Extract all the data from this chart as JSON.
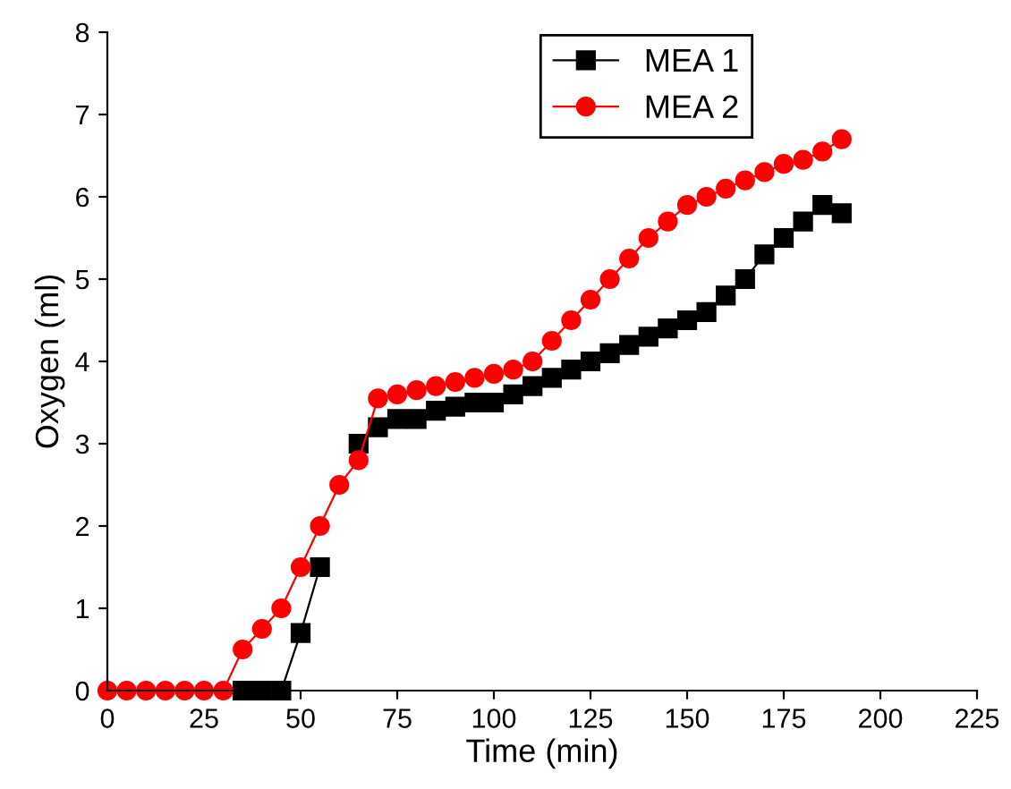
{
  "chart_data": {
    "type": "line",
    "xlabel": "Time (min)",
    "ylabel": "Oxygen (ml)",
    "x": [
      0,
      5,
      10,
      15,
      20,
      25,
      30,
      35,
      40,
      45,
      50,
      55,
      60,
      65,
      70,
      75,
      80,
      85,
      90,
      95,
      100,
      105,
      110,
      115,
      120,
      125,
      130,
      135,
      140,
      145,
      150,
      155,
      160,
      165,
      170,
      175,
      180,
      185,
      190
    ],
    "series": [
      {
        "name": "MEA 1",
        "color": "#000000",
        "marker": "square",
        "values": [
          null,
          null,
          null,
          null,
          null,
          null,
          null,
          0,
          0,
          0,
          0.7,
          1.5,
          null,
          3.0,
          3.2,
          3.3,
          3.3,
          3.4,
          3.45,
          3.5,
          3.5,
          3.6,
          3.7,
          3.8,
          3.9,
          4.0,
          4.1,
          4.2,
          4.3,
          4.4,
          4.5,
          4.6,
          4.8,
          5.0,
          5.3,
          5.5,
          5.7,
          5.9,
          5.8
        ]
      },
      {
        "name": "MEA 2",
        "color": "#ff0000",
        "marker": "circle",
        "values": [
          0,
          0,
          0,
          0,
          0,
          0,
          0,
          0.5,
          0.75,
          1.0,
          1.5,
          2.0,
          2.5,
          2.8,
          3.55,
          3.6,
          3.65,
          3.7,
          3.75,
          3.8,
          3.85,
          3.9,
          4.0,
          4.25,
          4.5,
          4.75,
          5.0,
          5.25,
          5.5,
          5.7,
          5.9,
          6.0,
          6.1,
          6.2,
          6.3,
          6.4,
          6.45,
          6.55,
          6.7
        ]
      }
    ],
    "xlim": [
      0,
      225
    ],
    "xticks": [
      0,
      25,
      50,
      75,
      100,
      125,
      150,
      175,
      200,
      225
    ],
    "ylim": [
      0,
      8
    ],
    "yticks": [
      0,
      1,
      2,
      3,
      4,
      5,
      6,
      7,
      8
    ],
    "grid": false,
    "legend": "top right",
    "line_style": "solid"
  }
}
